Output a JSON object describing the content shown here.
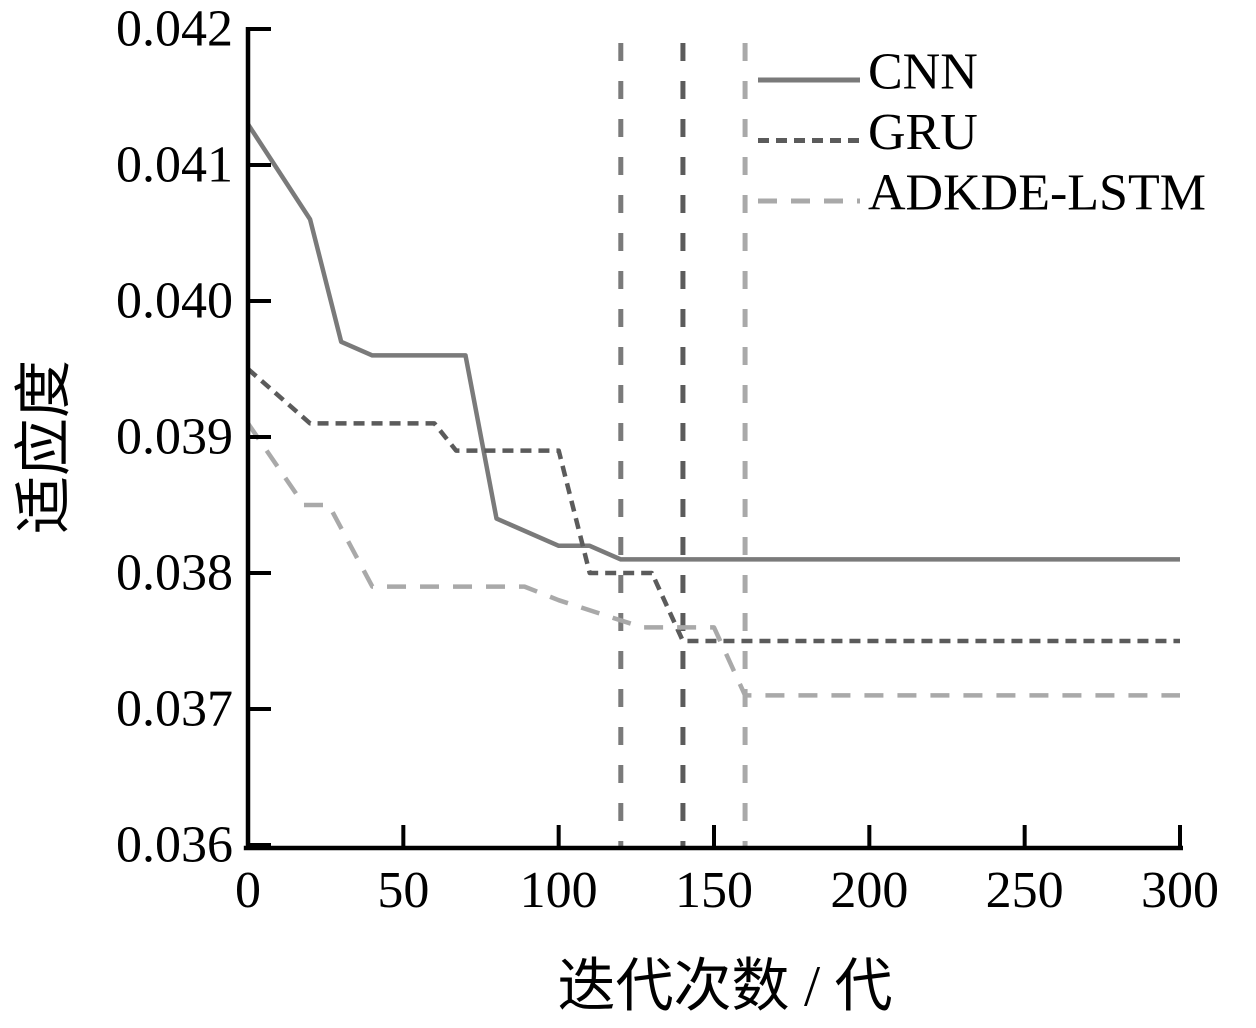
{
  "chart_data": {
    "type": "line",
    "title": "",
    "xlabel": "迭代次数 / 代",
    "ylabel": "适应度",
    "xlim": [
      0,
      300
    ],
    "ylim": [
      0.036,
      0.042
    ],
    "xticks": [
      "0",
      "50",
      "100",
      "150",
      "200",
      "250",
      "300"
    ],
    "yticks": [
      "0.036",
      "0.037",
      "0.038",
      "0.039",
      "0.040",
      "0.041",
      "0.042"
    ],
    "grid": false,
    "legend_position": "top-right",
    "axis_color": "#000000",
    "background_color": "#ffffff",
    "series": [
      {
        "name": "CNN",
        "line_style": "solid",
        "color": "#7a7a7a",
        "x": [
          0,
          20,
          30,
          40,
          70,
          80,
          100,
          110,
          120,
          300
        ],
        "y": [
          0.0413,
          0.0406,
          0.0397,
          0.0396,
          0.0396,
          0.0384,
          0.0382,
          0.0382,
          0.0381,
          0.0381
        ]
      },
      {
        "name": "GRU",
        "line_style": "dotted",
        "color": "#5b5b5b",
        "x": [
          0,
          20,
          60,
          67,
          100,
          110,
          130,
          140,
          300
        ],
        "y": [
          0.0395,
          0.0391,
          0.0391,
          0.0389,
          0.0389,
          0.038,
          0.038,
          0.0375,
          0.0375
        ]
      },
      {
        "name": "ADKDE-LSTM",
        "line_style": "dashed",
        "color": "#a9a9a9",
        "x": [
          0,
          18,
          26,
          40,
          89,
          100,
          127,
          150,
          160,
          300
        ],
        "y": [
          0.0391,
          0.0385,
          0.0385,
          0.0379,
          0.0379,
          0.0378,
          0.0376,
          0.0376,
          0.0371,
          0.0371
        ]
      }
    ],
    "convergence_vlines": [
      {
        "x": 120,
        "color": "#7a7a7a",
        "series": "CNN"
      },
      {
        "x": 140,
        "color": "#5b5b5b",
        "series": "GRU"
      },
      {
        "x": 160,
        "color": "#a9a9a9",
        "series": "ADKDE-LSTM"
      }
    ]
  }
}
